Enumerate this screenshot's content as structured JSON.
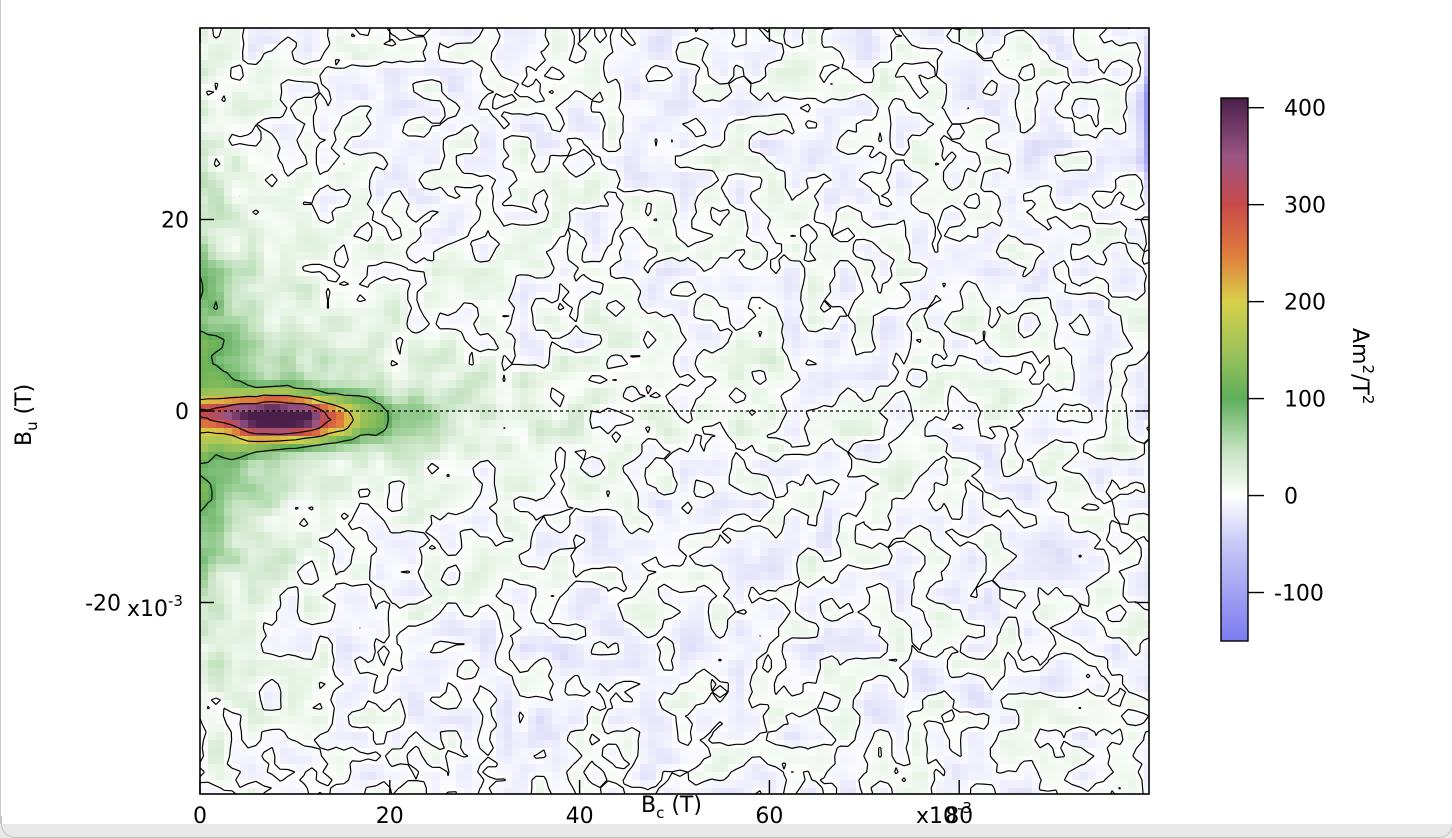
{
  "chart_data": {
    "type": "heatmap",
    "title": "",
    "xlabel_base": "B",
    "xlabel_sub": "c",
    "xlabel_unit": " (T)",
    "ylabel_base": "B",
    "ylabel_sub": "u",
    "ylabel_unit": " (T)",
    "x_range": [
      0,
      0.1
    ],
    "y_range": [
      -0.04,
      0.04
    ],
    "x_ticks": [
      {
        "value": 0,
        "label": "0"
      },
      {
        "value": 0.02,
        "label": "20"
      },
      {
        "value": 0.04,
        "label": "40"
      },
      {
        "value": 0.06,
        "label": "60"
      },
      {
        "value": 0.08,
        "label": "80"
      }
    ],
    "x_tick_multiplier": "x10",
    "x_tick_multiplier_exp": "-3",
    "y_ticks": [
      {
        "value": 0.02,
        "label": "20"
      },
      {
        "value": 0,
        "label": "0"
      },
      {
        "value": -0.02,
        "label": "-20"
      }
    ],
    "y_tick_multiplier": "x10",
    "y_tick_multiplier_exp": "-3",
    "zero_line": {
      "y": 0,
      "style": "dotted"
    },
    "contour_levels": [
      0,
      100,
      200,
      300
    ],
    "peak": {
      "bc": 0.009,
      "bu": -0.001,
      "value": 360
    },
    "colorbar": {
      "range": [
        -150,
        410
      ],
      "ticks": [
        {
          "value": 400,
          "label": "400"
        },
        {
          "value": 300,
          "label": "300"
        },
        {
          "value": 200,
          "label": "200"
        },
        {
          "value": 100,
          "label": "100"
        },
        {
          "value": 0,
          "label": "0"
        },
        {
          "value": -100,
          "label": "-100"
        }
      ],
      "label_base": "Am",
      "label_exp1": "2",
      "label_mid": "/T",
      "label_exp2": "2",
      "stops": [
        {
          "value": -150,
          "color": "#7b7bef"
        },
        {
          "value": -50,
          "color": "#c8c8f7"
        },
        {
          "value": 0,
          "color": "#ffffff"
        },
        {
          "value": 50,
          "color": "#bfe0bb"
        },
        {
          "value": 100,
          "color": "#5fae5a"
        },
        {
          "value": 150,
          "color": "#9fc45a"
        },
        {
          "value": 200,
          "color": "#d8cf4a"
        },
        {
          "value": 250,
          "color": "#e07a3c"
        },
        {
          "value": 300,
          "color": "#c84a4a"
        },
        {
          "value": 350,
          "color": "#9a5585"
        },
        {
          "value": 410,
          "color": "#4a1f4a"
        }
      ]
    }
  }
}
